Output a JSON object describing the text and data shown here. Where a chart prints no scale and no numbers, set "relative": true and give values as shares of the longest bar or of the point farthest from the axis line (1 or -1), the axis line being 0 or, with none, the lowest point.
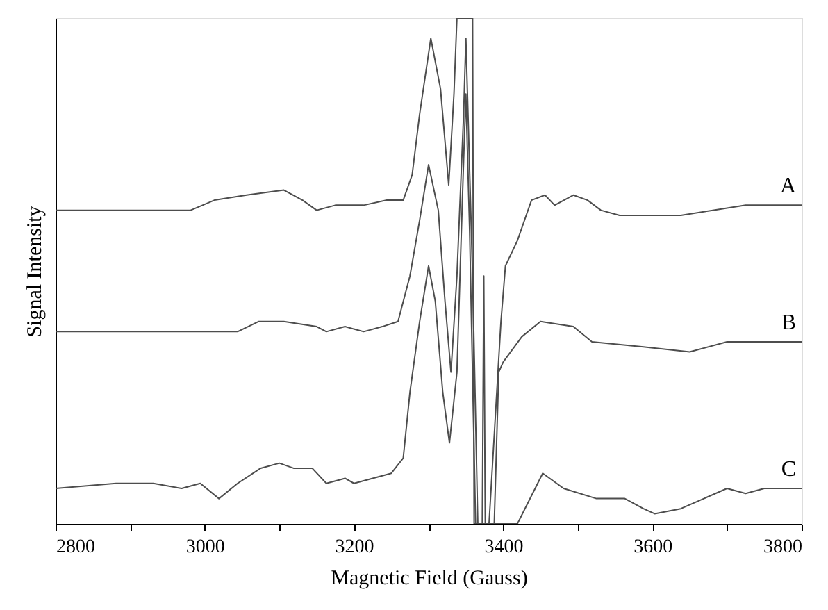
{
  "chart_data": {
    "type": "line",
    "xlabel": "Magnetic Field (Gauss)",
    "ylabel": "Signal Intensity",
    "relative": true,
    "grid": false,
    "marker": "none",
    "line_style": "solid",
    "tick_labels": "x",
    "xlim": [
      2800,
      3800
    ],
    "xticks": [
      2800,
      {
        "value": 2900,
        "label": null
      },
      3000,
      {
        "value": 3100,
        "label": null
      },
      3200,
      {
        "value": 3300,
        "label": null
      },
      3400,
      {
        "value": 3500,
        "label": null
      },
      3600,
      {
        "value": 3700,
        "label": null
      },
      3800
    ],
    "series": [
      {
        "name": "A",
        "color": "#4d4d4d",
        "x": [
          2800,
          2875,
          2913,
          2950,
          2981,
          3013,
          3056,
          3106,
          3131,
          3150,
          3175,
          3213,
          3244,
          3266,
          3278,
          3288,
          3303,
          3316,
          3327,
          3334,
          3338,
          3359,
          3361,
          3381,
          3397,
          3403,
          3419,
          3438,
          3456,
          3469,
          3494,
          3513,
          3531,
          3556,
          3588,
          3638,
          3681,
          3725,
          3769,
          3800
        ],
        "values": [
          0.62,
          0.62,
          0.62,
          0.62,
          0.62,
          0.64,
          0.65,
          0.66,
          0.64,
          0.62,
          0.63,
          0.63,
          0.64,
          0.64,
          0.69,
          0.81,
          0.96,
          0.86,
          0.67,
          0.85,
          1.0,
          1.0,
          0,
          0,
          0.4,
          0.51,
          0.56,
          0.64,
          0.65,
          0.63,
          0.65,
          0.64,
          0.62,
          0.61,
          0.61,
          0.61,
          0.62,
          0.63,
          0.63,
          0.63
        ]
      },
      {
        "name": "B",
        "color": "#4d4d4d",
        "x": [
          2800,
          2875,
          2913,
          2956,
          2994,
          3044,
          3072,
          3106,
          3150,
          3163,
          3188,
          3213,
          3238,
          3259,
          3275,
          3288,
          3300,
          3313,
          3322,
          3330,
          3338,
          3347,
          3350,
          3359,
          3366,
          3372,
          3374,
          3376,
          3388,
          3394,
          3400,
          3425,
          3450,
          3494,
          3519,
          3588,
          3650,
          3700,
          3750,
          3800
        ],
        "values": [
          0.38,
          0.38,
          0.38,
          0.38,
          0.38,
          0.38,
          0.4,
          0.4,
          0.39,
          0.38,
          0.39,
          0.38,
          0.39,
          0.4,
          0.49,
          0.6,
          0.71,
          0.62,
          0.44,
          0.3,
          0.49,
          0.81,
          0.96,
          0.49,
          0,
          0,
          0.49,
          0,
          0,
          0.3,
          0.32,
          0.37,
          0.4,
          0.39,
          0.36,
          0.35,
          0.34,
          0.36,
          0.36,
          0.36
        ]
      },
      {
        "name": "C",
        "color": "#4d4d4d",
        "x": [
          2800,
          2881,
          2931,
          2969,
          2994,
          3019,
          3044,
          3075,
          3100,
          3119,
          3144,
          3163,
          3188,
          3200,
          3225,
          3250,
          3266,
          3275,
          3288,
          3300,
          3309,
          3319,
          3328,
          3338,
          3347,
          3350,
          3355,
          3363,
          3419,
          3453,
          3481,
          3525,
          3563,
          3588,
          3603,
          3638,
          3669,
          3700,
          3725,
          3750,
          3800
        ],
        "values": [
          0.07,
          0.08,
          0.08,
          0.07,
          0.08,
          0.05,
          0.08,
          0.11,
          0.12,
          0.11,
          0.11,
          0.08,
          0.09,
          0.08,
          0.09,
          0.1,
          0.13,
          0.26,
          0.4,
          0.51,
          0.44,
          0.26,
          0.16,
          0.3,
          0.72,
          0.85,
          0.58,
          0,
          0,
          0.1,
          0.07,
          0.05,
          0.05,
          0.03,
          0.02,
          0.03,
          0.05,
          0.07,
          0.06,
          0.07,
          0.07
        ]
      }
    ]
  }
}
